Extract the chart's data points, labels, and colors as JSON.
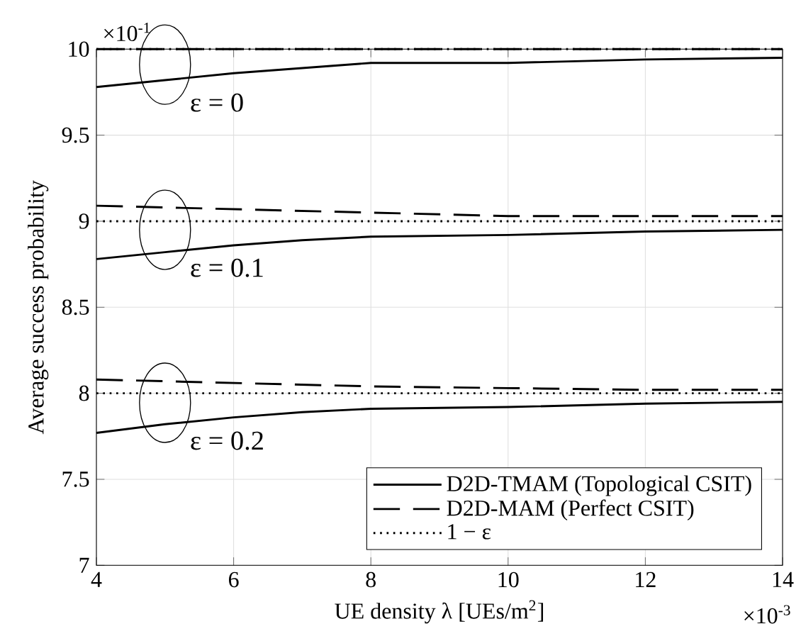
{
  "chart_data": {
    "type": "line",
    "xlabel": "UE density λ [UEs/m$^{2}$]",
    "ylabel": "Average success probability",
    "xlim": [
      4,
      14
    ],
    "ylim": [
      7,
      10
    ],
    "xticks": [
      4,
      6,
      8,
      10,
      12,
      14
    ],
    "yticks": [
      7,
      7.5,
      8,
      8.5,
      9,
      9.5,
      10
    ],
    "grid": true,
    "legend": "bottom right",
    "marker": "none",
    "x": [
      4,
      5,
      6,
      7,
      8,
      10,
      12,
      14
    ],
    "series": [
      {
        "name": "D2D-TMAM (Topological CSIT)",
        "color": "#000000",
        "line_style": "solid",
        "values": [
          9.78,
          9.82,
          9.86,
          9.89,
          9.92,
          9.92,
          9.94,
          9.95
        ]
      },
      {
        "name": "D2D-MAM (Perfect CSIT)",
        "color": "#000000",
        "line_style": "dashed",
        "values": [
          10,
          10,
          10,
          10,
          10,
          10,
          10,
          10
        ]
      },
      {
        "name": "1 − ε",
        "color": "#000000",
        "line_style": "dotted",
        "values": [
          10,
          10,
          10,
          10,
          10,
          10,
          10,
          10
        ]
      },
      {
        "color": "#000000",
        "line_style": "solid",
        "values": [
          8.78,
          8.82,
          8.86,
          8.89,
          8.91,
          8.92,
          8.94,
          8.95
        ]
      },
      {
        "color": "#000000",
        "line_style": "dashed",
        "values": [
          9.09,
          9.08,
          9.07,
          9.06,
          9.05,
          9.03,
          9.03,
          9.03
        ]
      },
      {
        "color": "#000000",
        "line_style": "dotted",
        "values": [
          9,
          9,
          9,
          9,
          9,
          9,
          9,
          9
        ]
      },
      {
        "color": "#000000",
        "line_style": "solid",
        "values": [
          7.77,
          7.82,
          7.86,
          7.89,
          7.91,
          7.92,
          7.94,
          7.95
        ]
      },
      {
        "color": "#000000",
        "line_style": "dashed",
        "values": [
          8.08,
          8.07,
          8.06,
          8.05,
          8.04,
          8.03,
          8.02,
          8.02
        ]
      },
      {
        "color": "#000000",
        "line_style": "dotted",
        "values": [
          8,
          8,
          8,
          8,
          8,
          8,
          8,
          8
        ]
      }
    ],
    "annotations": [
      "ε = 0",
      "ε = 0.1",
      "ε = 0.2",
      "×10$^{-1}$",
      "×10$^{-3}$"
    ]
  }
}
